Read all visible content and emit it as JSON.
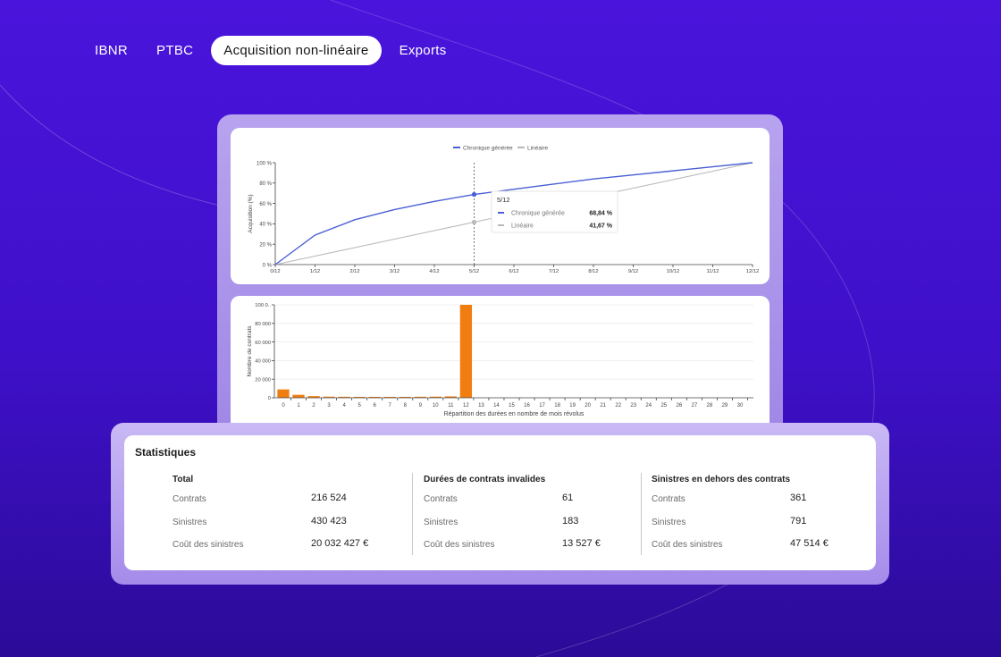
{
  "nav": {
    "tabs": [
      {
        "label": "IBNR",
        "active": false
      },
      {
        "label": "PTBC",
        "active": false
      },
      {
        "label": "Acquisition non-linéaire",
        "active": true
      },
      {
        "label": "Exports",
        "active": false
      }
    ]
  },
  "colors": {
    "accent_line": "#4a5fd6",
    "linear_line": "#b8b8b8",
    "bar": "#f07d0f",
    "background": "#4a14dc"
  },
  "chart_data": [
    {
      "type": "line",
      "legend": [
        "Chronique générée",
        "Linéaire"
      ],
      "ylabel": "Acquisition (%)",
      "xlabel": "",
      "x": [
        "0/12",
        "1/12",
        "2/12",
        "3/12",
        "4/12",
        "5/12",
        "6/12",
        "7/12",
        "8/12",
        "9/12",
        "10/12",
        "11/12",
        "12/12"
      ],
      "yticks": [
        "0 %",
        "20 %",
        "40 %",
        "60 %",
        "80 %",
        "100 %"
      ],
      "ylim": [
        0,
        100
      ],
      "series": [
        {
          "name": "Chronique générée",
          "values": [
            0,
            29,
            44,
            54,
            62,
            68.84,
            74,
            79,
            84,
            88,
            92,
            96,
            100
          ]
        },
        {
          "name": "Linéaire",
          "values": [
            0,
            8.33,
            16.67,
            25,
            33.33,
            41.67,
            50,
            58.33,
            66.67,
            75,
            83.33,
            91.67,
            100
          ]
        }
      ],
      "tooltip": {
        "title": "5/12",
        "index": 5,
        "rows": [
          {
            "label": "Chronique générée",
            "value": "68,84 %"
          },
          {
            "label": "Linéaire",
            "value": "41,67 %"
          }
        ]
      }
    },
    {
      "type": "bar",
      "ylabel": "Nombre de contrats",
      "xlabel": "Répartition des durées en nombre de mois révolus",
      "yticks": [
        "0",
        "20 000",
        "40 000",
        "60 000",
        "80 000",
        "100 0.."
      ],
      "ylim": [
        0,
        100000
      ],
      "categories": [
        "0",
        "1",
        "2",
        "3",
        "4",
        "5",
        "6",
        "7",
        "8",
        "9",
        "10",
        "11",
        "12",
        "13",
        "14",
        "15",
        "16",
        "17",
        "18",
        "19",
        "20",
        "21",
        "22",
        "23",
        "24",
        "25",
        "26",
        "27",
        "28",
        "29",
        "30"
      ],
      "values": [
        9000,
        3200,
        1800,
        1200,
        1100,
        1000,
        1000,
        1000,
        1000,
        1100,
        1200,
        1500,
        100000,
        0,
        0,
        0,
        0,
        0,
        0,
        0,
        0,
        0,
        0,
        0,
        0,
        0,
        0,
        0,
        0,
        0,
        0
      ]
    }
  ],
  "stats": {
    "title": "Statistiques",
    "groups": [
      {
        "title": "Total",
        "rows": [
          {
            "label": "Contrats",
            "value": "216 524"
          },
          {
            "label": "Sinistres",
            "value": "430 423"
          },
          {
            "label": "Coût des sinistres",
            "value": "20 032 427 €"
          }
        ]
      },
      {
        "title": "Durées de contrats invalides",
        "rows": [
          {
            "label": "Contrats",
            "value": "61"
          },
          {
            "label": "Sinistres",
            "value": "183"
          },
          {
            "label": "Coût des sinistres",
            "value": "13 527 €"
          }
        ]
      },
      {
        "title": "Sinistres en dehors des contrats",
        "rows": [
          {
            "label": "Contrats",
            "value": "361"
          },
          {
            "label": "Sinistres",
            "value": "791"
          },
          {
            "label": "Coût des sinistres",
            "value": "47 514 €"
          }
        ]
      }
    ]
  }
}
